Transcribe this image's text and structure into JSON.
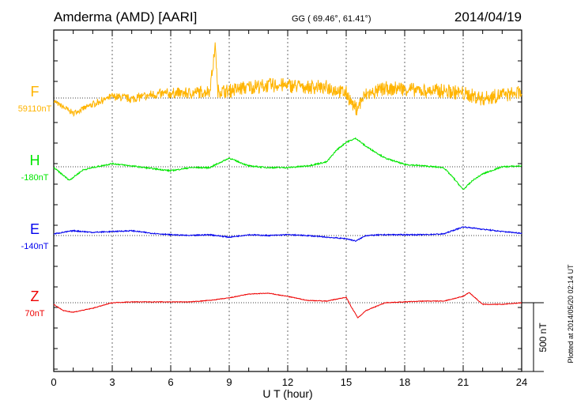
{
  "chart_data": {
    "type": "line",
    "title": "Amderma (AMD)  [AARI]",
    "coords": "GG ( 69.46°,  61.41°)",
    "date": "2014/04/19",
    "xlabel": "U T (hour)",
    "xlim": [
      0,
      24
    ],
    "xticks": [
      "0",
      "3",
      "6",
      "9",
      "12",
      "15",
      "18",
      "21",
      "24"
    ],
    "scale_label": "500 nT",
    "scale_nT": 500,
    "plotted_at": "Plotted at 2014/05/20 02:14 UT",
    "series": [
      {
        "name": "F",
        "baseline_label": "59110nT",
        "color": "#ffb400",
        "noise_nT": 45,
        "points": [
          [
            0,
            -23
          ],
          [
            1,
            -110
          ],
          [
            2,
            -46
          ],
          [
            3,
            12
          ],
          [
            4,
            -6
          ],
          [
            5,
            23
          ],
          [
            6,
            35
          ],
          [
            7,
            35
          ],
          [
            8,
            52
          ],
          [
            8.3,
            385
          ],
          [
            8.4,
            52
          ],
          [
            9,
            52
          ],
          [
            10,
            80
          ],
          [
            11,
            92
          ],
          [
            12,
            92
          ],
          [
            13,
            80
          ],
          [
            14,
            80
          ],
          [
            15,
            35
          ],
          [
            15.5,
            -80
          ],
          [
            16,
            23
          ],
          [
            17,
            69
          ],
          [
            18,
            69
          ],
          [
            19,
            52
          ],
          [
            20,
            52
          ],
          [
            21,
            35
          ],
          [
            22,
            -6
          ],
          [
            23,
            23
          ],
          [
            24,
            35
          ]
        ]
      },
      {
        "name": "H",
        "baseline_label": "-180nT",
        "color": "#00e600",
        "noise_nT": 10,
        "points": [
          [
            0,
            -6
          ],
          [
            0.8,
            -98
          ],
          [
            1.5,
            -23
          ],
          [
            2,
            -6
          ],
          [
            3,
            23
          ],
          [
            4,
            6
          ],
          [
            5,
            -12
          ],
          [
            6,
            -29
          ],
          [
            7,
            -6
          ],
          [
            8,
            -6
          ],
          [
            9,
            63
          ],
          [
            10,
            6
          ],
          [
            11,
            -6
          ],
          [
            12,
            -6
          ],
          [
            13,
            6
          ],
          [
            14,
            35
          ],
          [
            14.5,
            121
          ],
          [
            15,
            178
          ],
          [
            15.5,
            207
          ],
          [
            16,
            150
          ],
          [
            17,
            63
          ],
          [
            18,
            17
          ],
          [
            19,
            6
          ],
          [
            20,
            -6
          ],
          [
            20.5,
            -81
          ],
          [
            21,
            -167
          ],
          [
            21.5,
            -98
          ],
          [
            22,
            -52
          ],
          [
            23,
            0
          ],
          [
            24,
            6
          ]
        ]
      },
      {
        "name": "E",
        "baseline_label": "-140nT",
        "color": "#0000ee",
        "noise_nT": 8,
        "points": [
          [
            0,
            12
          ],
          [
            1,
            35
          ],
          [
            2,
            23
          ],
          [
            3,
            29
          ],
          [
            4,
            35
          ],
          [
            5,
            17
          ],
          [
            6,
            6
          ],
          [
            7,
            0
          ],
          [
            8,
            6
          ],
          [
            9,
            -12
          ],
          [
            10,
            6
          ],
          [
            11,
            0
          ],
          [
            12,
            6
          ],
          [
            13,
            0
          ],
          [
            14,
            -12
          ],
          [
            15,
            -23
          ],
          [
            15.5,
            -40
          ],
          [
            16,
            0
          ],
          [
            17,
            6
          ],
          [
            18,
            6
          ],
          [
            19,
            6
          ],
          [
            20,
            12
          ],
          [
            21,
            63
          ],
          [
            22,
            46
          ],
          [
            23,
            29
          ],
          [
            24,
            17
          ]
        ]
      },
      {
        "name": "Z",
        "baseline_label": "70nT",
        "color": "#ee0000",
        "noise_nT": 5,
        "points": [
          [
            0,
            -12
          ],
          [
            0.5,
            -58
          ],
          [
            1,
            -69
          ],
          [
            2,
            -40
          ],
          [
            3,
            0
          ],
          [
            4,
            6
          ],
          [
            5,
            6
          ],
          [
            6,
            6
          ],
          [
            7,
            6
          ],
          [
            8,
            17
          ],
          [
            9,
            35
          ],
          [
            10,
            63
          ],
          [
            11,
            69
          ],
          [
            12,
            46
          ],
          [
            13,
            17
          ],
          [
            14,
            12
          ],
          [
            15,
            40
          ],
          [
            15.3,
            -40
          ],
          [
            15.6,
            -110
          ],
          [
            16,
            -58
          ],
          [
            17,
            0
          ],
          [
            18,
            6
          ],
          [
            19,
            12
          ],
          [
            20,
            12
          ],
          [
            21,
            46
          ],
          [
            21.3,
            75
          ],
          [
            22,
            -12
          ],
          [
            23,
            -12
          ],
          [
            24,
            0
          ]
        ]
      }
    ]
  }
}
